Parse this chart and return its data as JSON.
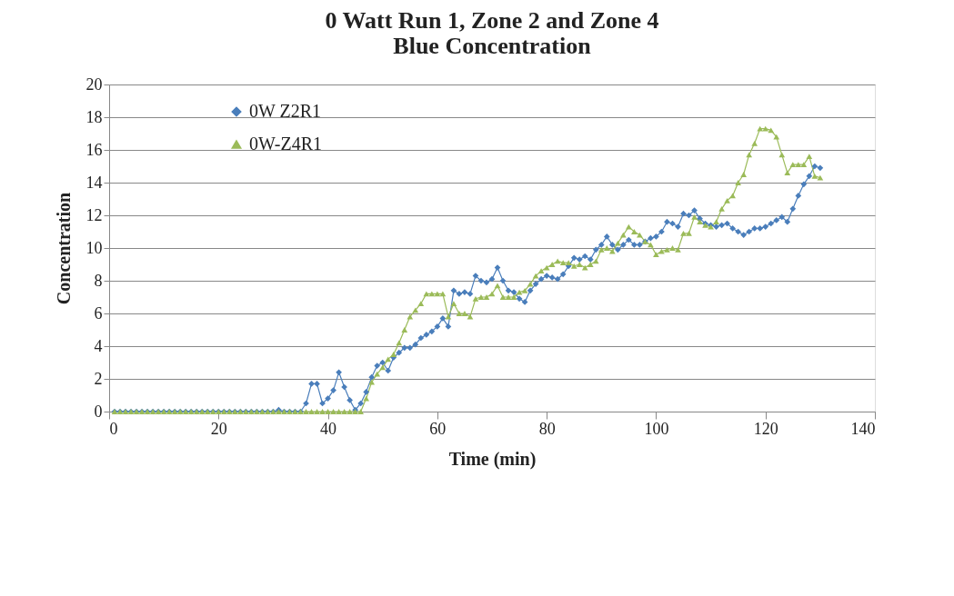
{
  "chart_data": {
    "type": "line",
    "title": [
      "0 Watt Run 1, Zone 2 and Zone 4",
      "Blue Concentration"
    ],
    "xlabel": "Time (min)",
    "ylabel": "Concentration",
    "xlim": [
      0,
      140
    ],
    "xticks": [
      0,
      20,
      40,
      60,
      80,
      100,
      120,
      140
    ],
    "ylim": [
      0,
      20
    ],
    "yticks": [
      0,
      2,
      4,
      6,
      8,
      10,
      12,
      14,
      16,
      18,
      20
    ],
    "grid": "y",
    "legend": "top left",
    "series": [
      {
        "name": "0W Z2R1",
        "color": "#4a7ebb",
        "marker": "diamond",
        "x": [
          1,
          2,
          3,
          4,
          5,
          6,
          7,
          8,
          9,
          10,
          11,
          12,
          13,
          14,
          15,
          16,
          17,
          18,
          19,
          20,
          21,
          22,
          23,
          24,
          25,
          26,
          27,
          28,
          29,
          30,
          31,
          32,
          33,
          34,
          35,
          36,
          37,
          38,
          39,
          40,
          41,
          42,
          43,
          44,
          45,
          46,
          47,
          48,
          49,
          50,
          51,
          52,
          53,
          54,
          55,
          56,
          57,
          58,
          59,
          60,
          61,
          62,
          63,
          64,
          65,
          66,
          67,
          68,
          69,
          70,
          71,
          72,
          73,
          74,
          75,
          76,
          77,
          78,
          79,
          80,
          81,
          82,
          83,
          84,
          85,
          86,
          87,
          88,
          89,
          90,
          91,
          92,
          93,
          94,
          95,
          96,
          97,
          98,
          99,
          100,
          101,
          102,
          103,
          104,
          105,
          106,
          107,
          108,
          109,
          110,
          111,
          112,
          113,
          114,
          115,
          116,
          117,
          118,
          119,
          120,
          121,
          122,
          123,
          124,
          125,
          126,
          127,
          128,
          129,
          130
        ],
        "values": [
          0,
          0,
          0,
          0,
          0,
          0,
          0,
          0,
          0,
          0,
          0,
          0,
          0,
          0,
          0,
          0,
          0,
          0,
          0,
          0,
          0,
          0,
          0,
          0,
          0,
          0,
          0,
          0,
          0,
          0,
          0.1,
          0,
          0,
          0,
          0,
          0.5,
          1.7,
          1.7,
          0.5,
          0.8,
          1.3,
          2.4,
          1.5,
          0.7,
          0.1,
          0.5,
          1.2,
          2.1,
          2.8,
          3.0,
          2.5,
          3.3,
          3.6,
          3.9,
          3.9,
          4.1,
          4.5,
          4.7,
          4.9,
          5.2,
          5.7,
          5.2,
          7.4,
          7.2,
          7.3,
          7.2,
          8.3,
          8.0,
          7.9,
          8.1,
          8.8,
          8.0,
          7.4,
          7.3,
          6.9,
          6.7,
          7.4,
          7.8,
          8.1,
          8.3,
          8.2,
          8.1,
          8.4,
          8.9,
          9.4,
          9.3,
          9.5,
          9.3,
          9.9,
          10.2,
          10.7,
          10.2,
          9.9,
          10.2,
          10.5,
          10.2,
          10.2,
          10.4,
          10.6,
          10.7,
          11.0,
          11.6,
          11.5,
          11.3,
          12.1,
          12.0,
          12.3,
          11.8,
          11.5,
          11.4,
          11.3,
          11.4,
          11.5,
          11.2,
          11.0,
          10.8,
          11.0,
          11.2,
          11.2,
          11.3,
          11.5,
          11.7,
          11.9,
          11.6,
          12.4,
          13.2,
          13.9,
          14.4,
          15.0,
          14.9
        ]
      },
      {
        "name": "0W-Z4R1",
        "color": "#9bbb59",
        "marker": "triangle",
        "x": [
          1,
          2,
          3,
          4,
          5,
          6,
          7,
          8,
          9,
          10,
          11,
          12,
          13,
          14,
          15,
          16,
          17,
          18,
          19,
          20,
          21,
          22,
          23,
          24,
          25,
          26,
          27,
          28,
          29,
          30,
          31,
          32,
          33,
          34,
          35,
          36,
          37,
          38,
          39,
          40,
          41,
          42,
          43,
          44,
          45,
          46,
          47,
          48,
          49,
          50,
          51,
          52,
          53,
          54,
          55,
          56,
          57,
          58,
          59,
          60,
          61,
          62,
          63,
          64,
          65,
          66,
          67,
          68,
          69,
          70,
          71,
          72,
          73,
          74,
          75,
          76,
          77,
          78,
          79,
          80,
          81,
          82,
          83,
          84,
          85,
          86,
          87,
          88,
          89,
          90,
          91,
          92,
          93,
          94,
          95,
          96,
          97,
          98,
          99,
          100,
          101,
          102,
          103,
          104,
          105,
          106,
          107,
          108,
          109,
          110,
          111,
          112,
          113,
          114,
          115,
          116,
          117,
          118,
          119,
          120,
          121,
          122,
          123,
          124,
          125,
          126,
          127,
          128,
          129,
          130
        ],
        "values": [
          0,
          0,
          0,
          0,
          0,
          0,
          0,
          0,
          0,
          0,
          0,
          0,
          0,
          0,
          0,
          0,
          0,
          0,
          0,
          0,
          0,
          0,
          0,
          0,
          0,
          0,
          0,
          0,
          0,
          0,
          0,
          0,
          0,
          0,
          0,
          0,
          0,
          0,
          0,
          0,
          0,
          0,
          0,
          0,
          0,
          0,
          0.8,
          1.8,
          2.3,
          2.7,
          3.2,
          3.5,
          4.2,
          5.0,
          5.8,
          6.2,
          6.6,
          7.2,
          7.2,
          7.2,
          7.2,
          5.8,
          6.6,
          6.0,
          6.0,
          5.8,
          6.9,
          7.0,
          7.0,
          7.2,
          7.7,
          7.0,
          7.0,
          7.0,
          7.3,
          7.4,
          7.8,
          8.3,
          8.6,
          8.8,
          9.0,
          9.2,
          9.1,
          9.1,
          8.9,
          9.0,
          8.8,
          9.0,
          9.2,
          9.9,
          10.0,
          9.8,
          10.3,
          10.8,
          11.3,
          11.0,
          10.8,
          10.4,
          10.2,
          9.6,
          9.8,
          9.9,
          10.0,
          9.9,
          10.9,
          10.9,
          11.9,
          11.6,
          11.4,
          11.3,
          11.6,
          12.4,
          12.9,
          13.2,
          14.0,
          14.5,
          15.7,
          16.4,
          17.3,
          17.3,
          17.2,
          16.8,
          15.7,
          14.6,
          15.1,
          15.1,
          15.1,
          15.6,
          14.4,
          14.3
        ]
      }
    ]
  }
}
